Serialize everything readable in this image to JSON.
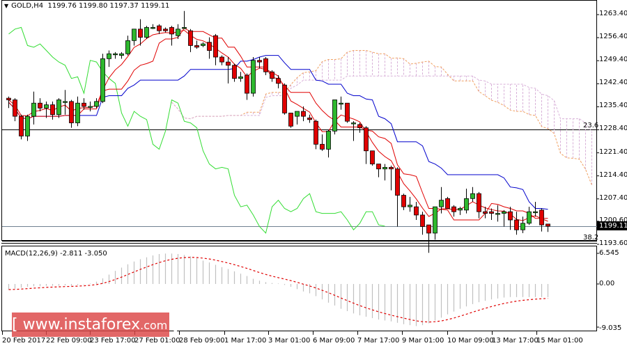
{
  "header": {
    "symbol_timeframe": "GOLD,H4",
    "ohlc": "1199.76 1199.80 1197.37 1199.11",
    "collapse_icon": "triangle-down-icon"
  },
  "price_axis": {
    "ticks": [
      "1263.40",
      "1256.40",
      "1249.40",
      "1242.40",
      "1235.40",
      "1228.40",
      "1221.40",
      "1214.40",
      "1207.40",
      "1200.60",
      "1193.60"
    ],
    "current_price": "1199.11"
  },
  "fibonacci": {
    "level_1": "23.6",
    "level_2": "38.2"
  },
  "macd": {
    "label": "MACD(12,26,9) -2.811 -3.050",
    "ticks": [
      "6.545",
      "0.00",
      "-9.035"
    ]
  },
  "time_axis": {
    "labels": [
      "20 Feb 2017",
      "22 Feb 09:00",
      "23 Feb 17:00",
      "27 Feb 01:00",
      "28 Feb 09:00",
      "1 Mar 17:00",
      "3 Mar 01:00",
      "6 Mar 09:00",
      "7 Mar 17:00",
      "9 Mar 01:00",
      "10 Mar 09:00",
      "13 Mar 17:00",
      "15 Mar 01:00"
    ]
  },
  "watermark": {
    "open": "[",
    "main": " www.instaforex",
    "suffix": ".com",
    "close": " ]"
  },
  "colors": {
    "bull": "#2eb82e",
    "bear": "#e00000",
    "tenkan": "#e00000",
    "kijun": "#0000cc",
    "chikou": "#33dd33",
    "cloud_a": "#f0a060",
    "cloud_b": "#d8b0d8",
    "macd_hist": "#c0c0c0",
    "macd_signal": "#e00000",
    "watermark_bg": "#dc4646"
  },
  "chart_data": [
    {
      "type": "candlestick",
      "title": "GOLD,H4",
      "subtitle": "1199.76 1199.80 1197.37 1199.11",
      "xlabel": "",
      "ylabel": "",
      "ylim": [
        1192.0,
        1266.0
      ],
      "y_ticks": [
        1263.4,
        1256.4,
        1249.4,
        1242.4,
        1235.4,
        1228.4,
        1221.4,
        1214.4,
        1207.4,
        1200.6,
        1193.6
      ],
      "x_tick_labels": [
        "20 Feb 2017",
        "22 Feb 09:00",
        "23 Feb 17:00",
        "27 Feb 01:00",
        "28 Feb 09:00",
        "1 Mar 17:00",
        "3 Mar 01:00",
        "6 Mar 09:00",
        "7 Mar 17:00",
        "9 Mar 01:00",
        "10 Mar 09:00",
        "13 Mar 17:00",
        "15 Mar 01:00"
      ],
      "candles": [
        [
          1238.0,
          1238.5,
          1235.0,
          1237.5
        ],
        [
          1237.5,
          1238.0,
          1231.0,
          1232.5
        ],
        [
          1232.5,
          1233.0,
          1225.5,
          1226.5
        ],
        [
          1226.5,
          1233.0,
          1225.0,
          1232.5
        ],
        [
          1232.5,
          1240.0,
          1230.0,
          1236.5
        ],
        [
          1236.5,
          1238.0,
          1234.0,
          1235.0
        ],
        [
          1235.0,
          1237.0,
          1232.0,
          1236.0
        ],
        [
          1236.0,
          1237.0,
          1231.5,
          1233.0
        ],
        [
          1233.0,
          1238.0,
          1232.0,
          1237.5
        ],
        [
          1237.0,
          1240.5,
          1233.0,
          1237.0
        ],
        [
          1237.0,
          1237.5,
          1229.0,
          1230.5
        ],
        [
          1230.5,
          1238.5,
          1229.5,
          1236.5
        ],
        [
          1236.5,
          1238.0,
          1234.5,
          1235.5
        ],
        [
          1235.5,
          1237.0,
          1234.0,
          1235.5
        ],
        [
          1235.5,
          1238.0,
          1235.0,
          1237.0
        ],
        [
          1237.0,
          1251.5,
          1236.5,
          1250.0
        ],
        [
          1250.0,
          1252.5,
          1247.5,
          1251.5
        ],
        [
          1251.5,
          1252.0,
          1250.0,
          1251.5
        ],
        [
          1251.0,
          1252.0,
          1250.0,
          1251.5
        ],
        [
          1251.5,
          1257.0,
          1251.0,
          1255.5
        ],
        [
          1255.5,
          1259.0,
          1254.0,
          1259.0
        ],
        [
          1259.0,
          1262.0,
          1254.0,
          1256.5
        ],
        [
          1256.5,
          1260.0,
          1256.0,
          1259.5
        ],
        [
          1259.5,
          1260.5,
          1259.0,
          1259.5
        ],
        [
          1260.0,
          1260.5,
          1257.5,
          1258.5
        ],
        [
          1259.0,
          1259.5,
          1258.0,
          1258.5
        ],
        [
          1259.5,
          1260.0,
          1254.0,
          1257.5
        ],
        [
          1257.0,
          1260.5,
          1256.0,
          1259.0
        ],
        [
          1259.5,
          1264.5,
          1259.0,
          1259.5
        ],
        [
          1258.5,
          1259.0,
          1252.0,
          1254.0
        ],
        [
          1254.0,
          1255.5,
          1253.0,
          1253.5
        ],
        [
          1254.0,
          1255.0,
          1253.5,
          1254.5
        ],
        [
          1255.0,
          1256.5,
          1250.0,
          1252.5
        ],
        [
          1257.0,
          1257.5,
          1248.0,
          1250.5
        ],
        [
          1250.5,
          1251.0,
          1248.0,
          1249.0
        ],
        [
          1249.0,
          1250.5,
          1242.5,
          1248.0
        ],
        [
          1248.0,
          1248.5,
          1243.0,
          1244.0
        ],
        [
          1244.0,
          1246.0,
          1243.0,
          1244.5
        ],
        [
          1245.0,
          1245.5,
          1237.5,
          1239.5
        ],
        [
          1239.5,
          1250.5,
          1238.5,
          1249.5
        ],
        [
          1249.5,
          1250.5,
          1247.0,
          1249.0
        ],
        [
          1250.0,
          1250.5,
          1245.0,
          1246.0
        ],
        [
          1246.0,
          1246.5,
          1243.0,
          1244.0
        ],
        [
          1244.0,
          1245.0,
          1241.0,
          1242.5
        ],
        [
          1242.0,
          1242.5,
          1233.0,
          1233.5
        ],
        [
          1233.5,
          1233.5,
          1229.0,
          1229.5
        ],
        [
          1232.5,
          1234.0,
          1230.0,
          1234.0
        ],
        [
          1234.0,
          1235.5,
          1231.0,
          1232.5
        ],
        [
          1232.0,
          1233.0,
          1230.5,
          1231.5
        ],
        [
          1231.0,
          1231.5,
          1222.5,
          1224.0
        ],
        [
          1224.0,
          1227.0,
          1222.0,
          1222.5
        ],
        [
          1222.5,
          1228.5,
          1220.0,
          1228.0
        ],
        [
          1228.0,
          1237.5,
          1227.0,
          1237.5
        ],
        [
          1236.5,
          1238.5,
          1234.5,
          1236.5
        ],
        [
          1236.5,
          1236.5,
          1230.5,
          1231.0
        ],
        [
          1230.5,
          1231.0,
          1225.0,
          1230.5
        ],
        [
          1230.0,
          1230.5,
          1227.5,
          1229.0
        ],
        [
          1229.0,
          1229.5,
          1218.0,
          1222.0
        ],
        [
          1222.0,
          1222.0,
          1217.5,
          1218.0
        ],
        [
          1218.0,
          1218.0,
          1214.0,
          1216.5
        ],
        [
          1216.5,
          1218.0,
          1213.0,
          1217.0
        ],
        [
          1217.0,
          1217.5,
          1210.0,
          1216.5
        ],
        [
          1216.5,
          1217.0,
          1199.0,
          1208.5
        ],
        [
          1208.5,
          1209.0,
          1204.0,
          1205.0
        ],
        [
          1205.0,
          1208.0,
          1203.5,
          1205.5
        ],
        [
          1205.0,
          1206.5,
          1201.0,
          1202.5
        ],
        [
          1202.5,
          1203.5,
          1196.5,
          1199.0
        ],
        [
          1199.5,
          1199.5,
          1191.0,
          1197.0
        ],
        [
          1197.0,
          1205.0,
          1195.0,
          1205.0
        ],
        [
          1205.0,
          1211.0,
          1203.0,
          1207.0
        ],
        [
          1207.5,
          1208.0,
          1204.5,
          1204.5
        ],
        [
          1205.0,
          1205.5,
          1202.0,
          1203.5
        ],
        [
          1204.0,
          1205.0,
          1202.5,
          1204.5
        ],
        [
          1204.0,
          1210.5,
          1203.0,
          1207.5
        ],
        [
          1207.5,
          1211.0,
          1206.5,
          1209.0
        ],
        [
          1209.0,
          1209.5,
          1201.5,
          1203.5
        ],
        [
          1203.5,
          1205.0,
          1201.5,
          1203.0
        ],
        [
          1203.5,
          1204.5,
          1201.0,
          1203.0
        ],
        [
          1203.0,
          1205.5,
          1200.5,
          1203.0
        ],
        [
          1203.0,
          1204.0,
          1199.0,
          1203.5
        ],
        [
          1203.5,
          1205.0,
          1198.0,
          1201.0
        ],
        [
          1201.0,
          1203.5,
          1196.5,
          1198.0
        ],
        [
          1198.0,
          1202.0,
          1197.0,
          1200.0
        ],
        [
          1200.0,
          1205.0,
          1199.5,
          1203.5
        ],
        [
          1203.5,
          1206.5,
          1202.0,
          1203.5
        ],
        [
          1204.0,
          1204.5,
          1197.5,
          1199.5
        ],
        [
          1199.76,
          1199.8,
          1197.37,
          1199.11
        ]
      ],
      "macd_hist": [
        -1.2,
        -1.0,
        -0.8,
        -0.6,
        -0.5,
        -0.5,
        -0.4,
        -0.4,
        -0.4,
        -0.3,
        -0.4,
        -0.2,
        -0.1,
        0.1,
        0.5,
        1.2,
        2.0,
        2.8,
        3.5,
        4.2,
        4.8,
        5.3,
        5.7,
        6.1,
        6.4,
        6.5,
        6.5,
        6.4,
        6.2,
        5.9,
        5.5,
        5.0,
        4.6,
        4.1,
        3.6,
        3.2,
        2.7,
        2.2,
        1.7,
        1.1,
        0.7,
        0.4,
        0.2,
        0.1,
        -0.2,
        -0.6,
        -1.1,
        -1.6,
        -2.0,
        -2.6,
        -3.3,
        -4.0,
        -4.6,
        -5.3,
        -5.8,
        -6.3,
        -6.7,
        -7.0,
        -7.3,
        -7.6,
        -7.8,
        -8.0,
        -8.3,
        -8.6,
        -8.8,
        -9.0,
        -8.8,
        -8.4,
        -7.8,
        -7.2,
        -6.5,
        -5.9,
        -5.3,
        -4.8,
        -4.3,
        -3.9,
        -3.6,
        -3.3,
        -3.1,
        -2.9,
        -2.8,
        -2.8,
        -2.8,
        -2.8,
        -2.8,
        -2.8,
        -2.811
      ],
      "macd_signal_range": [
        -9.035,
        6.545
      ]
    }
  ]
}
